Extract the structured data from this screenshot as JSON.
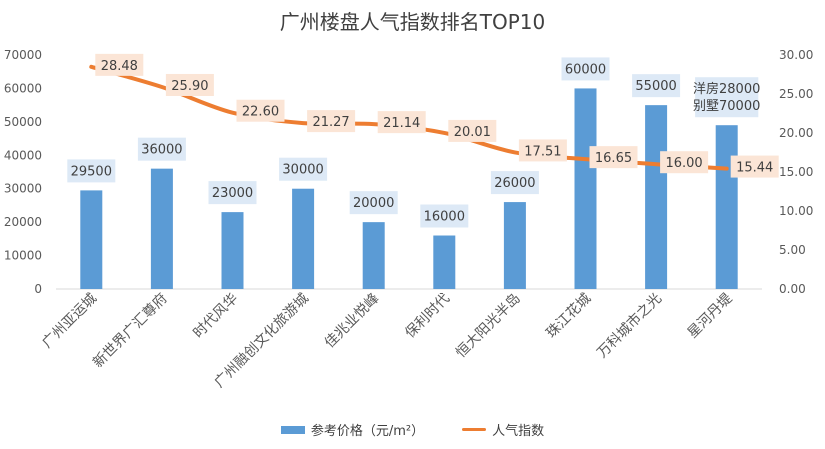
{
  "chart_data": {
    "type": "bar",
    "title": "广州楼盘人气指数排名TOP10",
    "categories": [
      "广州亚运城",
      "新世界广汇尊府",
      "时代风华",
      "广州融创文化旅游城",
      "佳兆业悦峰",
      "保利时代",
      "恒大阳光半岛",
      "珠江花城",
      "万科城市之光",
      "星河丹堤"
    ],
    "series": [
      {
        "name": "参考价格（元/m²）",
        "type": "bar",
        "axis": "left",
        "values": [
          29500,
          36000,
          23000,
          30000,
          20000,
          16000,
          26000,
          60000,
          55000,
          49000
        ],
        "labels": [
          "29500",
          "36000",
          "23000",
          "30000",
          "20000",
          "16000",
          "26000",
          "60000",
          "55000",
          "洋房28000\n别墅70000"
        ],
        "color": "#5b9bd5"
      },
      {
        "name": "人气指数",
        "type": "line",
        "axis": "right",
        "values": [
          28.48,
          25.9,
          22.6,
          21.27,
          21.14,
          20.01,
          17.51,
          16.65,
          16.0,
          15.44
        ],
        "labels": [
          "28.48",
          "25.90",
          "22.60",
          "21.27",
          "21.14",
          "20.01",
          "17.51",
          "16.65",
          "16.00",
          "15.44"
        ],
        "color": "#ed7d31"
      }
    ],
    "y_left": {
      "range": [
        0,
        70000
      ],
      "ticks": [
        "0",
        "10000",
        "20000",
        "30000",
        "40000",
        "50000",
        "60000",
        "70000"
      ]
    },
    "y_right": {
      "range": [
        0,
        30
      ],
      "ticks": [
        "0.00",
        "5.00",
        "10.00",
        "15.00",
        "20.00",
        "25.00",
        "30.00"
      ]
    },
    "grid": false,
    "legend_position": "bottom"
  }
}
